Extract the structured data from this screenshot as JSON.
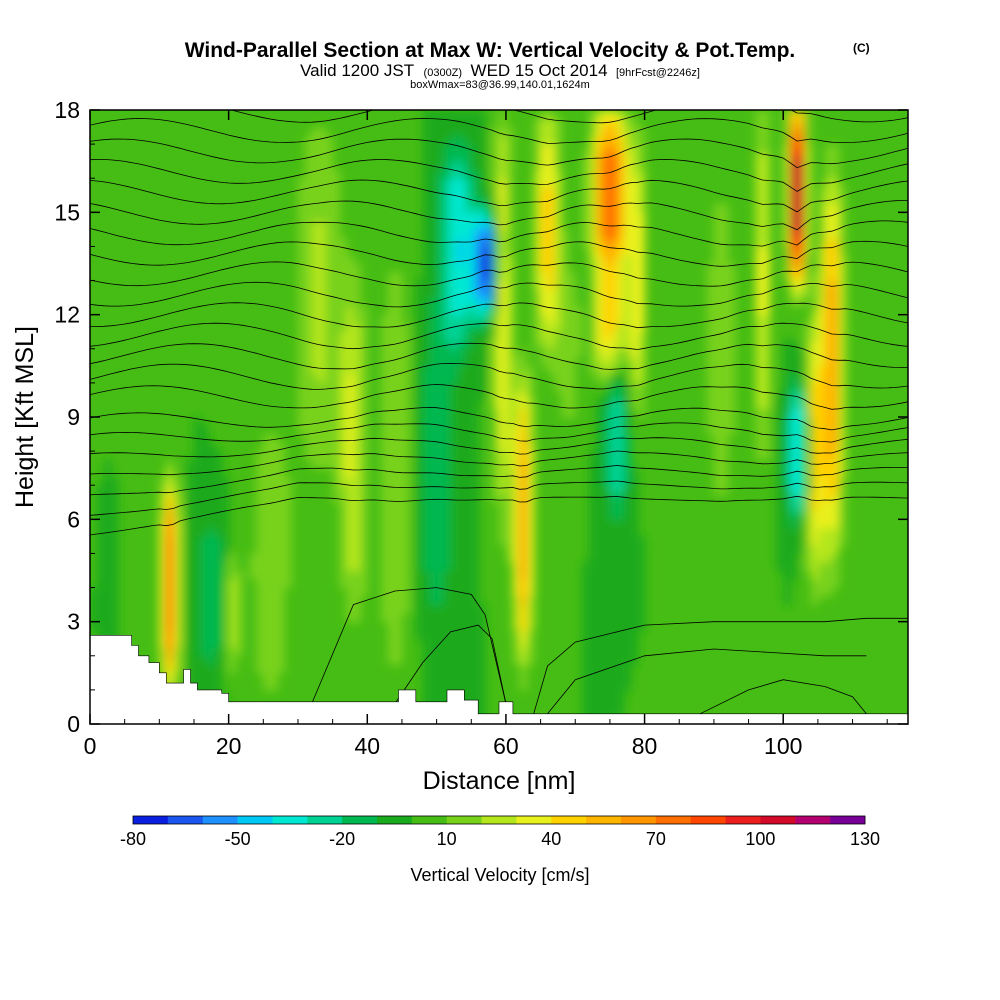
{
  "chart_data": {
    "type": "heatmap",
    "title": "Wind-Parallel Section at Max W: Vertical Velocity & Pot.Temp.",
    "title_suffix": "(C)",
    "subtitle_parts": [
      "Valid 1200 JST",
      "(0300Z)",
      "WED 15 Oct 2014",
      "[9hrFcst@2246z]"
    ],
    "subtitle2": "boxWmax=83@36.99,140.01,1624m",
    "xlabel": "Distance [nm]",
    "ylabel": "Height [Kft MSL]",
    "xlim": [
      0,
      118
    ],
    "ylim": [
      0,
      18
    ],
    "x_ticks": [
      "0",
      "20",
      "40",
      "60",
      "80",
      "100"
    ],
    "y_ticks": [
      "0",
      "3",
      "6",
      "9",
      "12",
      "15",
      "18"
    ],
    "colorbar": {
      "label": "Vertical Velocity [cm/s]",
      "levels": [
        -80,
        -70,
        -60,
        -50,
        -40,
        -30,
        -20,
        -10,
        0,
        10,
        20,
        30,
        40,
        50,
        60,
        70,
        80,
        90,
        100,
        110,
        120,
        130
      ],
      "tick_labels": [
        "-80",
        "-50",
        "-20",
        "10",
        "40",
        "70",
        "100",
        "130"
      ],
      "colors": [
        "#0a1ee0",
        "#1a55f0",
        "#1e90ff",
        "#00c8f5",
        "#00e8d2",
        "#00d294",
        "#00b850",
        "#1aaa1e",
        "#46bd14",
        "#78d21a",
        "#b4e61e",
        "#e8f01e",
        "#ffd200",
        "#ffb400",
        "#ff9600",
        "#ff6e00",
        "#ff4600",
        "#ec1e1e",
        "#d20a28",
        "#b4006e",
        "#780096"
      ]
    },
    "background_w": 0,
    "updrafts": [
      {
        "x": 11.5,
        "ymin": 1.2,
        "ymax": 7.0,
        "w": 90,
        "sx": 1.1
      },
      {
        "x": 17.5,
        "ymin": 1.5,
        "ymax": 6.0,
        "w": -20,
        "sx": 2.0
      },
      {
        "x": 20.5,
        "ymin": 1.5,
        "ymax": 5.0,
        "w": 25,
        "sx": 1.2
      },
      {
        "x": 26,
        "ymin": 0.5,
        "ymax": 9.0,
        "w": 20,
        "sx": 3.0
      },
      {
        "x": 33,
        "ymin": 7.0,
        "ymax": 18,
        "w": 22,
        "sx": 3.5
      },
      {
        "x": 38,
        "ymin": 3.0,
        "ymax": 13,
        "w": 30,
        "sx": 2.0
      },
      {
        "x": 44,
        "ymin": 1.0,
        "ymax": 14,
        "w": 20,
        "sx": 2.5
      },
      {
        "x": 50,
        "ymin": 3.0,
        "ymax": 12,
        "w": -20,
        "sx": 2.5
      },
      {
        "x": 53,
        "ymin": 11,
        "ymax": 17,
        "w": -40,
        "sx": 2.5
      },
      {
        "x": 57,
        "ymin": 12,
        "ymax": 15,
        "w": -70,
        "sx": 1.8
      },
      {
        "x": 59.5,
        "ymin": 6.0,
        "ymax": 18,
        "w": 40,
        "sx": 1.3
      },
      {
        "x": 62.5,
        "ymin": 2.0,
        "ymax": 10,
        "w": 65,
        "sx": 1.3
      },
      {
        "x": 66,
        "ymin": 11,
        "ymax": 18,
        "w": 45,
        "sx": 1.8
      },
      {
        "x": 69,
        "ymin": 8.0,
        "ymax": 14,
        "w": 15,
        "sx": 2.0
      },
      {
        "x": 75,
        "ymin": 13,
        "ymax": 18,
        "w": 80,
        "sx": 2.5
      },
      {
        "x": 75,
        "ymin": 10,
        "ymax": 13,
        "w": 45,
        "sx": 2.5
      },
      {
        "x": 76,
        "ymin": 6.0,
        "ymax": 11,
        "w": -30,
        "sx": 1.6
      },
      {
        "x": 79,
        "ymin": 9.0,
        "ymax": 17,
        "w": 35,
        "sx": 1.3
      },
      {
        "x": 91,
        "ymin": 6.0,
        "ymax": 16,
        "w": 20,
        "sx": 2.0
      },
      {
        "x": 97,
        "ymin": 8.0,
        "ymax": 18,
        "w": 35,
        "sx": 1.3
      },
      {
        "x": 102,
        "ymin": 13,
        "ymax": 18,
        "w": 125,
        "sx": 1.2
      },
      {
        "x": 102,
        "ymin": 6.0,
        "ymax": 10,
        "w": -45,
        "sx": 1.3
      },
      {
        "x": 104.5,
        "ymin": 4.0,
        "ymax": 12,
        "w": 40,
        "sx": 1.2
      },
      {
        "x": 107,
        "ymin": 5.0,
        "ymax": 16,
        "w": 60,
        "sx": 1.6
      }
    ],
    "terrain": [
      [
        0,
        2.6
      ],
      [
        6,
        2.6
      ],
      [
        6,
        2.3
      ],
      [
        7,
        2.3
      ],
      [
        7,
        2.0
      ],
      [
        8.5,
        2.0
      ],
      [
        8.5,
        1.8
      ],
      [
        10,
        1.8
      ],
      [
        10,
        1.5
      ],
      [
        11,
        1.5
      ],
      [
        11,
        1.2
      ],
      [
        13.5,
        1.2
      ],
      [
        13.5,
        1.6
      ],
      [
        14.5,
        1.6
      ],
      [
        14.5,
        1.2
      ],
      [
        15.5,
        1.2
      ],
      [
        15.5,
        1.0
      ],
      [
        19,
        1.0
      ],
      [
        19,
        0.9
      ],
      [
        20,
        0.9
      ],
      [
        20,
        0.65
      ],
      [
        44.5,
        0.65
      ],
      [
        44.5,
        1.0
      ],
      [
        47,
        1.0
      ],
      [
        47,
        0.65
      ],
      [
        51.5,
        0.65
      ],
      [
        51.5,
        1.0
      ],
      [
        54,
        1.0
      ],
      [
        54,
        0.7
      ],
      [
        56,
        0.7
      ],
      [
        56,
        0.3
      ],
      [
        59,
        0.3
      ],
      [
        59,
        0.65
      ],
      [
        61,
        0.65
      ],
      [
        61,
        0.3
      ],
      [
        118,
        0.3
      ]
    ],
    "theta_contours": [
      {
        "y_left": 18.0,
        "label": ""
      },
      {
        "y_left": 17.4,
        "label": ""
      },
      {
        "y_left": 16.8,
        "label": ""
      },
      {
        "y_left": 16.2,
        "label": ""
      },
      {
        "y_left": 15.6,
        "label": ""
      },
      {
        "y_left": 15.0,
        "label": ""
      },
      {
        "y_left": 14.4,
        "label": ""
      },
      {
        "y_left": 13.8,
        "label": ""
      },
      {
        "y_left": 13.2,
        "label": ""
      },
      {
        "y_left": 12.6,
        "label": ""
      },
      {
        "y_left": 12.0,
        "label": ""
      },
      {
        "y_left": 11.4,
        "label": ""
      },
      {
        "y_left": 10.8,
        "label": ""
      },
      {
        "y_left": 10.2,
        "label": ""
      },
      {
        "y_left": 9.6,
        "label": ""
      },
      {
        "y_left": 9.0,
        "label": ""
      },
      {
        "y_left": 8.6,
        "label": ""
      },
      {
        "y_left": 8.2,
        "label": ""
      },
      {
        "y_left": 7.8,
        "label": ""
      },
      {
        "y_left": 7.4,
        "label": ""
      },
      {
        "y_left": 7.0,
        "label": ""
      },
      {
        "y_left": 6.6,
        "label": ""
      }
    ],
    "low_contours": [
      {
        "xs": [
          32,
          38,
          44,
          50,
          55,
          57,
          60
        ],
        "ys": [
          0.6,
          3.5,
          3.9,
          4.0,
          3.8,
          3.2,
          0.6
        ]
      },
      {
        "xs": [
          44,
          48,
          52,
          56,
          58,
          60
        ],
        "ys": [
          0.6,
          1.8,
          2.7,
          2.9,
          2.5,
          0.6
        ]
      },
      {
        "xs": [
          64,
          66,
          70,
          80,
          90,
          98,
          106,
          112,
          118
        ],
        "ys": [
          0.3,
          1.7,
          2.4,
          2.9,
          3.0,
          3.0,
          3.0,
          3.1,
          3.1
        ]
      },
      {
        "xs": [
          66,
          70,
          80,
          90,
          98,
          106,
          112
        ],
        "ys": [
          0.3,
          1.3,
          2.0,
          2.2,
          2.1,
          2.0,
          2.0
        ]
      },
      {
        "xs": [
          88,
          95,
          100,
          106,
          110,
          112
        ],
        "ys": [
          0.3,
          1.0,
          1.3,
          1.1,
          0.8,
          0.3
        ]
      }
    ]
  }
}
